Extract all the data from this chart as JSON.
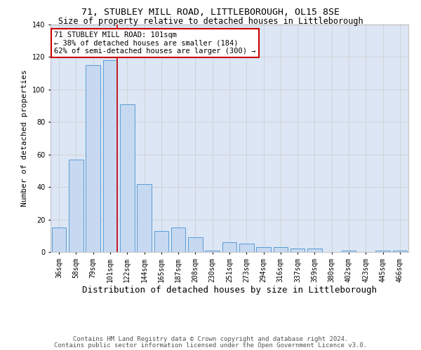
{
  "title": "71, STUBLEY MILL ROAD, LITTLEBOROUGH, OL15 8SE",
  "subtitle": "Size of property relative to detached houses in Littleborough",
  "xlabel": "Distribution of detached houses by size in Littleborough",
  "ylabel": "Number of detached properties",
  "categories": [
    "36sqm",
    "58sqm",
    "79sqm",
    "101sqm",
    "122sqm",
    "144sqm",
    "165sqm",
    "187sqm",
    "208sqm",
    "230sqm",
    "251sqm",
    "273sqm",
    "294sqm",
    "316sqm",
    "337sqm",
    "359sqm",
    "380sqm",
    "402sqm",
    "423sqm",
    "445sqm",
    "466sqm"
  ],
  "values": [
    15,
    57,
    115,
    118,
    91,
    42,
    13,
    15,
    9,
    1,
    6,
    5,
    3,
    3,
    2,
    2,
    0,
    1,
    0,
    1,
    1
  ],
  "bar_color": "#c6d9f1",
  "bar_edge_color": "#5b9bd5",
  "grid_color": "#d0d0d0",
  "background_color": "#dce6f5",
  "fig_background": "#ffffff",
  "vline_x_index": 3,
  "vline_color": "#cc0000",
  "annotation_text": "71 STUBLEY MILL ROAD: 101sqm\n← 38% of detached houses are smaller (184)\n62% of semi-detached houses are larger (300) →",
  "annotation_box_color": "#cc0000",
  "annotation_bg": "#ffffff",
  "ylim": [
    0,
    140
  ],
  "yticks": [
    0,
    20,
    40,
    60,
    80,
    100,
    120,
    140
  ],
  "footer_line1": "Contains HM Land Registry data © Crown copyright and database right 2024.",
  "footer_line2": "Contains public sector information licensed under the Open Government Licence v3.0.",
  "title_fontsize": 9.5,
  "subtitle_fontsize": 8.5,
  "xlabel_fontsize": 9,
  "ylabel_fontsize": 8,
  "tick_fontsize": 7,
  "footer_fontsize": 6.5,
  "annotation_fontsize": 7.5
}
